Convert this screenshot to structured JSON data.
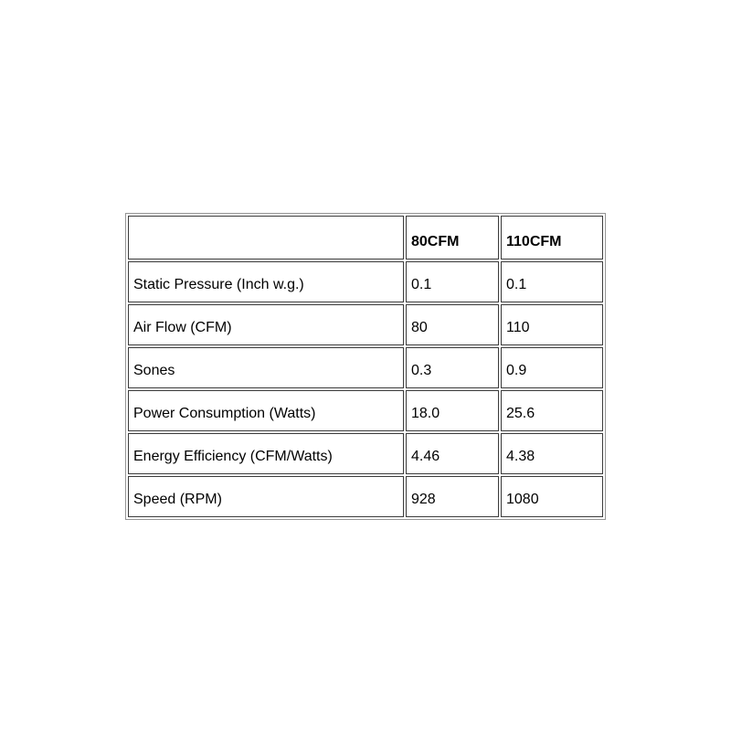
{
  "page": {
    "background_color": "#ffffff",
    "text_color": "#000000",
    "table_outer_border_color": "#949494",
    "table_cell_border_color": "#3b3b3b"
  },
  "table": {
    "columns": [
      "",
      "80CFM",
      "110CFM"
    ],
    "rows": [
      {
        "label": "Static Pressure (Inch w.g.)",
        "values": [
          "0.1",
          "0.1"
        ]
      },
      {
        "label": "Air Flow (CFM)",
        "values": [
          "80",
          "110"
        ]
      },
      {
        "label": "Sones",
        "values": [
          "0.3",
          "0.9"
        ]
      },
      {
        "label": "Power Consumption (Watts)",
        "values": [
          "18.0",
          "25.6"
        ]
      },
      {
        "label": "Energy Efficiency (CFM/Watts)",
        "values": [
          "4.46",
          "4.38"
        ]
      },
      {
        "label": "Speed (RPM)",
        "values": [
          "928",
          "1080"
        ]
      }
    ]
  },
  "chart_data": {
    "type": "table",
    "columns": [
      "",
      "80CFM",
      "110CFM"
    ],
    "rows": [
      [
        "Static Pressure (Inch w.g.)",
        "0.1",
        "0.1"
      ],
      [
        "Air Flow (CFM)",
        "80",
        "110"
      ],
      [
        "Sones",
        "0.3",
        "0.9"
      ],
      [
        "Power Consumption (Watts)",
        "18.0",
        "25.6"
      ],
      [
        "Energy Efficiency (CFM/Watts)",
        "4.46",
        "4.38"
      ],
      [
        "Speed (RPM)",
        "928",
        "1080"
      ]
    ],
    "series": [
      {
        "name": "80CFM",
        "values": [
          0.1,
          80,
          0.3,
          18.0,
          4.46,
          928
        ]
      },
      {
        "name": "110CFM",
        "values": [
          0.1,
          110,
          0.9,
          25.6,
          4.38,
          1080
        ]
      }
    ],
    "categories": [
      "Static Pressure (Inch w.g.)",
      "Air Flow (CFM)",
      "Sones",
      "Power Consumption (Watts)",
      "Energy Efficiency (CFM/Watts)",
      "Speed (RPM)"
    ],
    "title": "",
    "layout_hints": {
      "header_bold": true,
      "cell_text_align": "left",
      "cell_vertical_align": "bottom",
      "border_style": "separated-1px"
    }
  }
}
